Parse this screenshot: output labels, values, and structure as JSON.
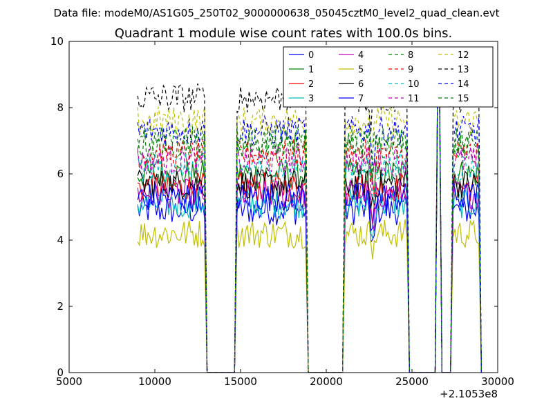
{
  "figure": {
    "suptitle": "Data file: modeM0/AS1G05_250T02_9000000638_05045cztM0_level2_quad_clean.evt"
  },
  "chart_data": {
    "type": "line",
    "title": "Quadrant 1 module wise count rates with 100.0s bins.",
    "xlabel": "",
    "ylabel": "",
    "xlim": [
      5000,
      30000
    ],
    "ylim": [
      0,
      10
    ],
    "x_offset_label": "+2.1053e8",
    "xticks": [
      5000,
      10000,
      15000,
      20000,
      25000,
      30000
    ],
    "xtick_labels": [
      "5000",
      "10000",
      "15000",
      "20000",
      "25000",
      "30000"
    ],
    "yticks": [
      0,
      2,
      4,
      6,
      8,
      10
    ],
    "ytick_labels": [
      "0",
      "2",
      "4",
      "6",
      "8",
      "10"
    ],
    "grid": false,
    "legend_position": "upper-right",
    "legend_columns": 4,
    "segments": [
      [
        9000,
        12900
      ],
      [
        14800,
        18800
      ],
      [
        21100,
        24700
      ],
      [
        26500,
        26600
      ],
      [
        27400,
        28900
      ]
    ],
    "series": [
      {
        "name": "0",
        "color": "#0000ff",
        "dash": "solid",
        "level": 4.9
      },
      {
        "name": "1",
        "color": "#008000",
        "dash": "solid",
        "level": 6.0
      },
      {
        "name": "2",
        "color": "#ff0000",
        "dash": "solid",
        "level": 5.6
      },
      {
        "name": "3",
        "color": "#00bfbf",
        "dash": "solid",
        "level": 5.1
      },
      {
        "name": "4",
        "color": "#bf00bf",
        "dash": "solid",
        "level": 5.4
      },
      {
        "name": "5",
        "color": "#bfbf00",
        "dash": "solid",
        "level": 4.2
      },
      {
        "name": "6",
        "color": "#000000",
        "dash": "solid",
        "level": 5.7
      },
      {
        "name": "7",
        "color": "#0000ff",
        "dash": "solid",
        "level": 5.3
      },
      {
        "name": "8",
        "color": "#008000",
        "dash": "dashed",
        "level": 6.9
      },
      {
        "name": "9",
        "color": "#ff0000",
        "dash": "dashed",
        "level": 6.6
      },
      {
        "name": "10",
        "color": "#00bfbf",
        "dash": "dashed",
        "level": 6.2
      },
      {
        "name": "11",
        "color": "#bf00bf",
        "dash": "dashed",
        "level": 6.4
      },
      {
        "name": "12",
        "color": "#bfbf00",
        "dash": "dashed",
        "level": 7.6
      },
      {
        "name": "13",
        "color": "#000000",
        "dash": "dashed",
        "level": 8.3
      },
      {
        "name": "14",
        "color": "#0000ff",
        "dash": "dashed",
        "level": 7.3
      },
      {
        "name": "15",
        "color": "#008000",
        "dash": "dashed",
        "level": 7.0
      }
    ]
  }
}
